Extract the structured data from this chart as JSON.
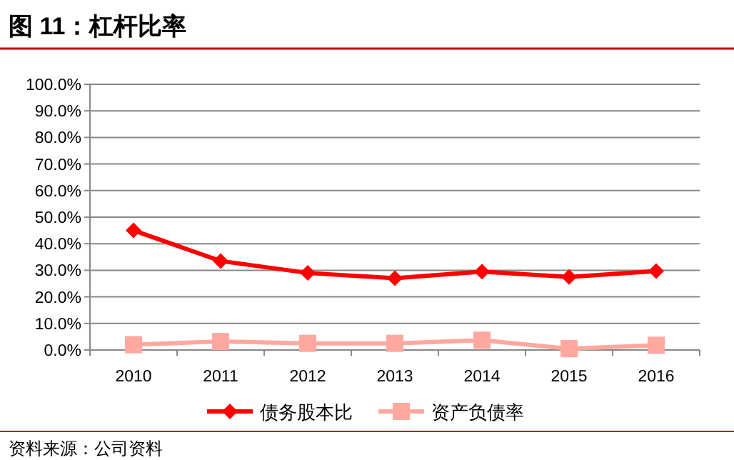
{
  "chart_data": {
    "type": "line",
    "title": "图 11：杠杆比率",
    "categories": [
      "2010",
      "2011",
      "2012",
      "2013",
      "2014",
      "2015",
      "2016"
    ],
    "series": [
      {
        "name": "债务股本比",
        "color": "#ff0000",
        "marker": "diamond",
        "values": [
          45,
          33.5,
          29,
          27,
          29.5,
          27.5,
          29.7
        ]
      },
      {
        "name": "资产负债率",
        "color": "#ffa8a0",
        "marker": "square",
        "values": [
          2,
          3.2,
          2.5,
          2.5,
          3.7,
          0.5,
          1.8
        ]
      }
    ],
    "ylim": [
      0,
      100
    ],
    "yticks": [
      {
        "value": 0,
        "label": "0.0%"
      },
      {
        "value": 10,
        "label": "10.0%"
      },
      {
        "value": 20,
        "label": "20.0%"
      },
      {
        "value": 30,
        "label": "30.0%"
      },
      {
        "value": 40,
        "label": "40.0%"
      },
      {
        "value": 50,
        "label": "50.0%"
      },
      {
        "value": 60,
        "label": "60.0%"
      },
      {
        "value": 70,
        "label": "70.0%"
      },
      {
        "value": 80,
        "label": "80.0%"
      },
      {
        "value": 90,
        "label": "90.0%"
      },
      {
        "value": 100,
        "label": "100.0%"
      }
    ],
    "grid": "y",
    "legend": "bottom",
    "line_style": "solid",
    "annotations": [
      "资料来源：公司资料"
    ]
  }
}
